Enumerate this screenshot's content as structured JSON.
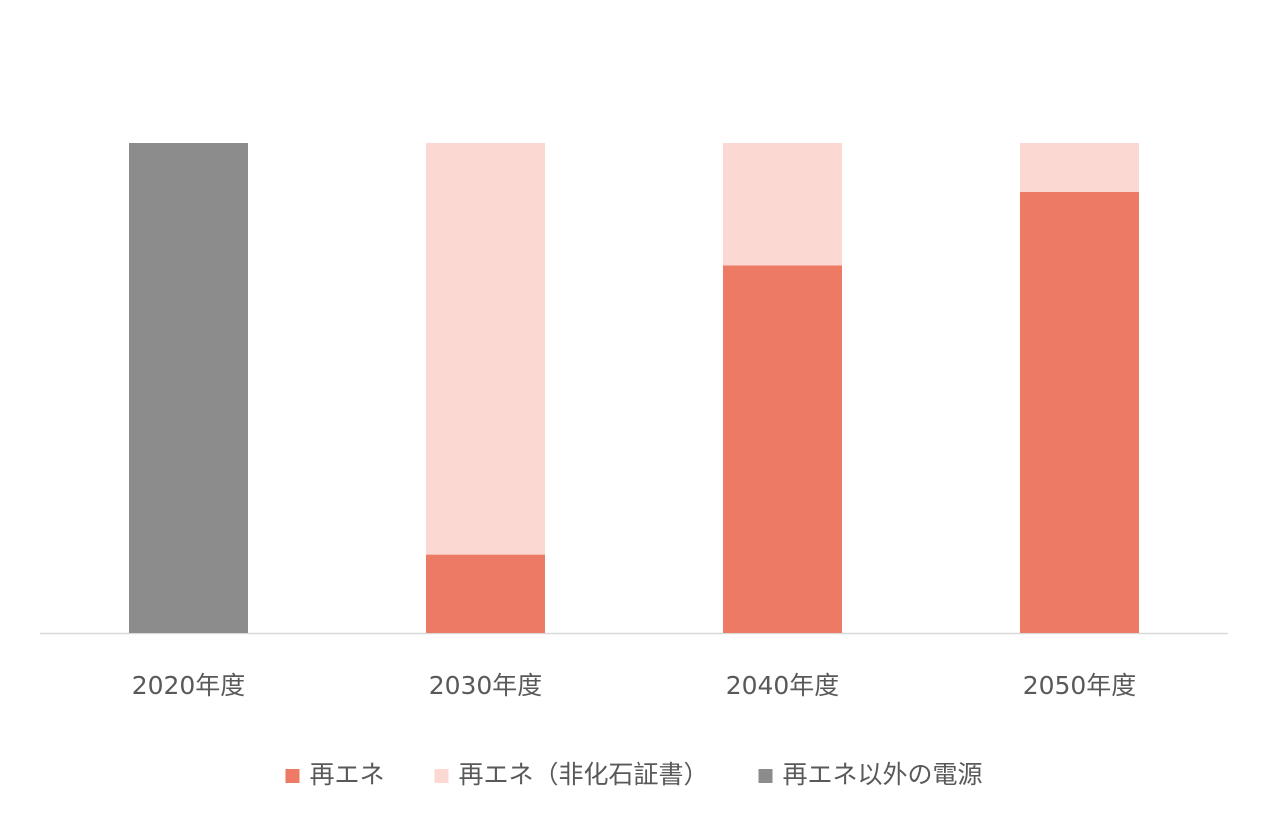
{
  "chart_data": {
    "type": "stacked_bar",
    "categories": [
      "2020年度",
      "2030年度",
      "2040年度",
      "2050年度"
    ],
    "series": [
      {
        "name": "再エネ",
        "color": "#ec7a65",
        "values": [
          0,
          16,
          75,
          90
        ]
      },
      {
        "name": "再エネ（非化石証書）",
        "color": "#fbd8d1",
        "values": [
          0,
          84,
          25,
          10
        ]
      },
      {
        "name": "再エネ以外の電源",
        "color": "#8c8c8c",
        "values": [
          100,
          0,
          0,
          0
        ]
      }
    ],
    "legend": "bottom"
  }
}
